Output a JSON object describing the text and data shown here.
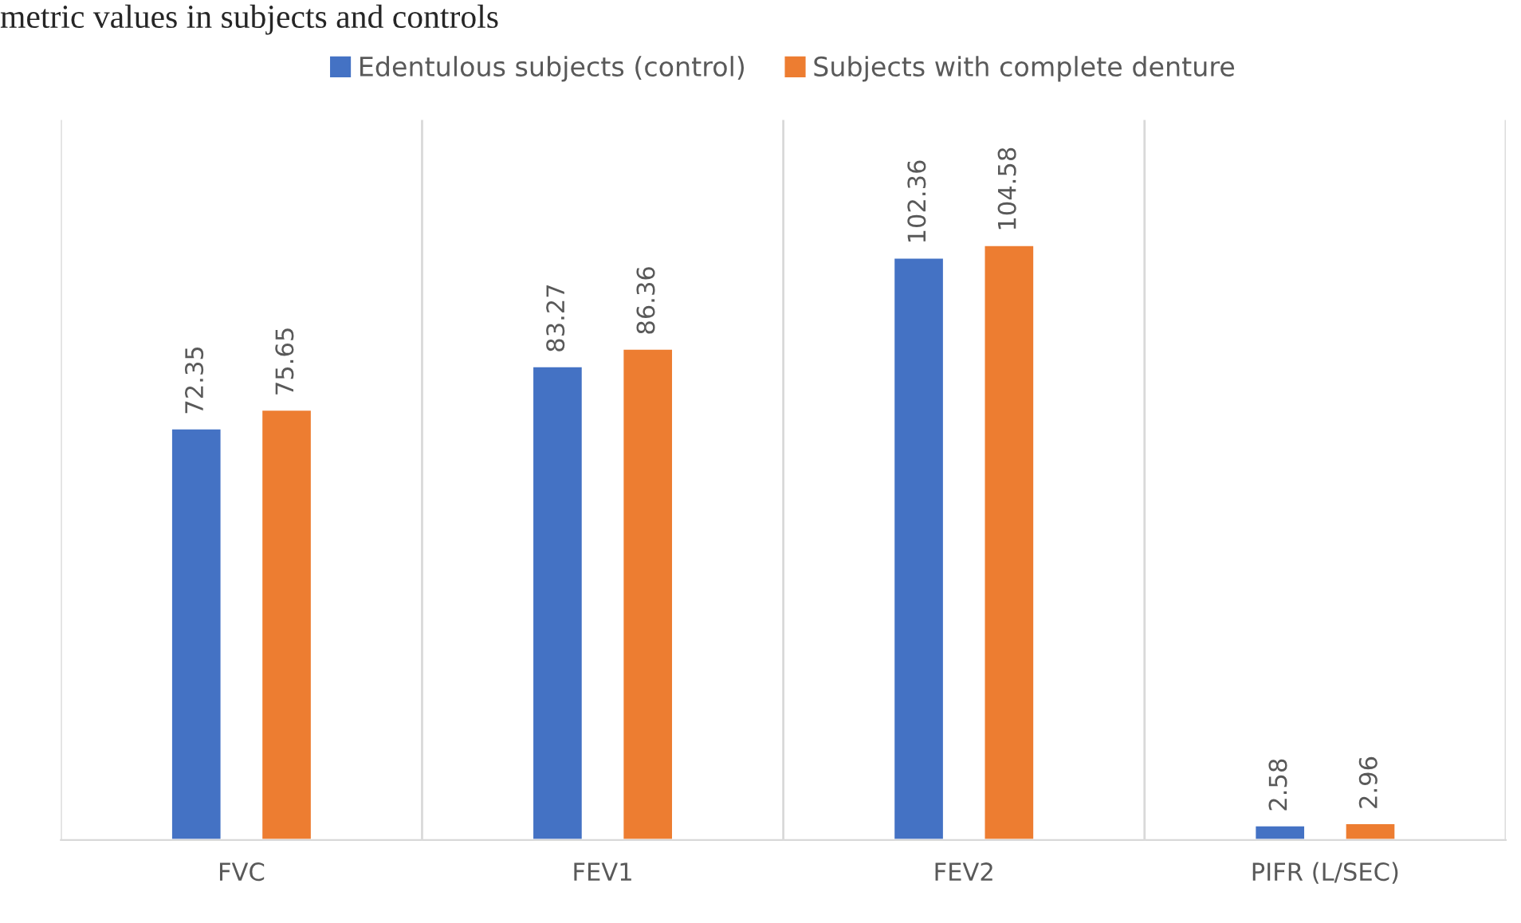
{
  "chart_data": {
    "type": "bar",
    "title": "metric values in subjects and controls",
    "categories": [
      "FVC",
      "FEV1",
      "FEV2",
      "PIFR (L/SEC)"
    ],
    "series": [
      {
        "name": "Edentulous subjects (control)",
        "color": "#4472c4",
        "values": [
          72.35,
          83.27,
          102.36,
          2.58
        ]
      },
      {
        "name": "Subjects with complete denture",
        "color": "#ed7d31",
        "values": [
          75.65,
          86.36,
          104.58,
          2.96
        ]
      }
    ],
    "data_labels": true,
    "grid": "x",
    "legend": "top"
  }
}
